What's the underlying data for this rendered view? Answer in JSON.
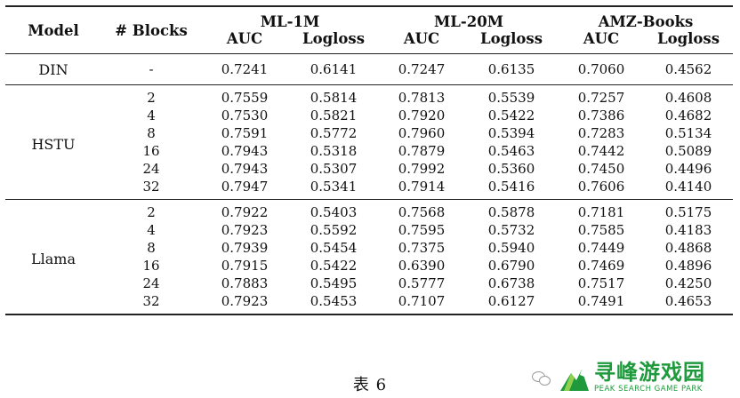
{
  "table": {
    "header_model": "Model",
    "header_blocks": "# Blocks",
    "datasets": [
      "ML-1M",
      "ML-20M",
      "AMZ-Books"
    ],
    "metric_auc": "AUC",
    "metric_logloss": "Logloss",
    "din": {
      "model": "DIN",
      "blocks": "-",
      "values": [
        "0.7241",
        "0.6141",
        "0.7247",
        "0.6135",
        "0.7060",
        "0.4562"
      ]
    },
    "groups": [
      {
        "model": "HSTU",
        "rows": [
          {
            "blocks": "2",
            "values": [
              "0.7559",
              "0.5814",
              "0.7813",
              "0.5539",
              "0.7257",
              "0.4608"
            ]
          },
          {
            "blocks": "4",
            "values": [
              "0.7530",
              "0.5821",
              "0.7920",
              "0.5422",
              "0.7386",
              "0.4682"
            ]
          },
          {
            "blocks": "8",
            "values": [
              "0.7591",
              "0.5772",
              "0.7960",
              "0.5394",
              "0.7283",
              "0.5134"
            ]
          },
          {
            "blocks": "16",
            "values": [
              "0.7943",
              "0.5318",
              "0.7879",
              "0.5463",
              "0.7442",
              "0.5089"
            ]
          },
          {
            "blocks": "24",
            "values": [
              "0.7943",
              "0.5307",
              "0.7992",
              "0.5360",
              "0.7450",
              "0.4496"
            ]
          },
          {
            "blocks": "32",
            "values": [
              "0.7947",
              "0.5341",
              "0.7914",
              "0.5416",
              "0.7606",
              "0.4140"
            ]
          }
        ]
      },
      {
        "model": "Llama",
        "rows": [
          {
            "blocks": "2",
            "values": [
              "0.7922",
              "0.5403",
              "0.7568",
              "0.5878",
              "0.7181",
              "0.5175"
            ]
          },
          {
            "blocks": "4",
            "values": [
              "0.7923",
              "0.5592",
              "0.7595",
              "0.5732",
              "0.7585",
              "0.4183"
            ]
          },
          {
            "blocks": "8",
            "values": [
              "0.7939",
              "0.5454",
              "0.7375",
              "0.5940",
              "0.7449",
              "0.4868"
            ]
          },
          {
            "blocks": "16",
            "values": [
              "0.7915",
              "0.5422",
              "0.6390",
              "0.6790",
              "0.7469",
              "0.4896"
            ]
          },
          {
            "blocks": "24",
            "values": [
              "0.7883",
              "0.5495",
              "0.5777",
              "0.6738",
              "0.7517",
              "0.4250"
            ]
          },
          {
            "blocks": "32",
            "values": [
              "0.7923",
              "0.5453",
              "0.7107",
              "0.6127",
              "0.7491",
              "0.4653"
            ]
          }
        ]
      }
    ]
  },
  "caption": "表 6",
  "watermark": {
    "name_cn": "寻峰游戏园",
    "name_en": "PEAK SEARCH GAME PARK",
    "brand_color": "#1e9a3c",
    "icons": [
      "wechat-icon",
      "peak-logo-icon"
    ]
  }
}
